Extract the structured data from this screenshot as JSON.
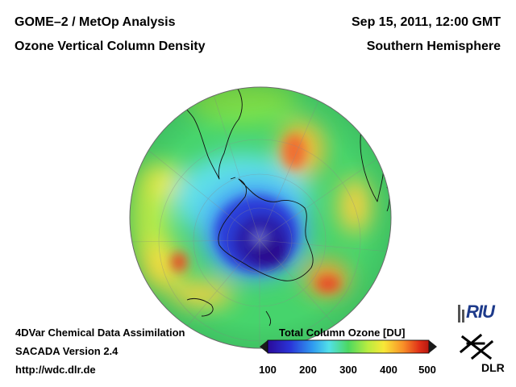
{
  "header": {
    "title_left_1": "GOME–2 / MetOp Analysis",
    "title_left_2": "Ozone Vertical Column Density",
    "title_right_1": "Sep 15, 2011, 12:00 GMT",
    "title_right_2": "Southern Hemisphere"
  },
  "footer": {
    "line1": "4DVar Chemical Data Assimilation",
    "line2": "SACADA Version 2.4",
    "line3": "http://wdc.dlr.de"
  },
  "colorbar": {
    "title": "Total Column Ozone [DU]",
    "ticks": [
      "100",
      "200",
      "300",
      "400",
      "500"
    ],
    "min": 100,
    "max": 500
  },
  "logos": {
    "riu": "RIU",
    "dlr": "DLR"
  },
  "colors": {
    "ocean_green": "#44d46a",
    "low_ozone": "#2a0a9a",
    "high_ozone": "#e03018"
  }
}
